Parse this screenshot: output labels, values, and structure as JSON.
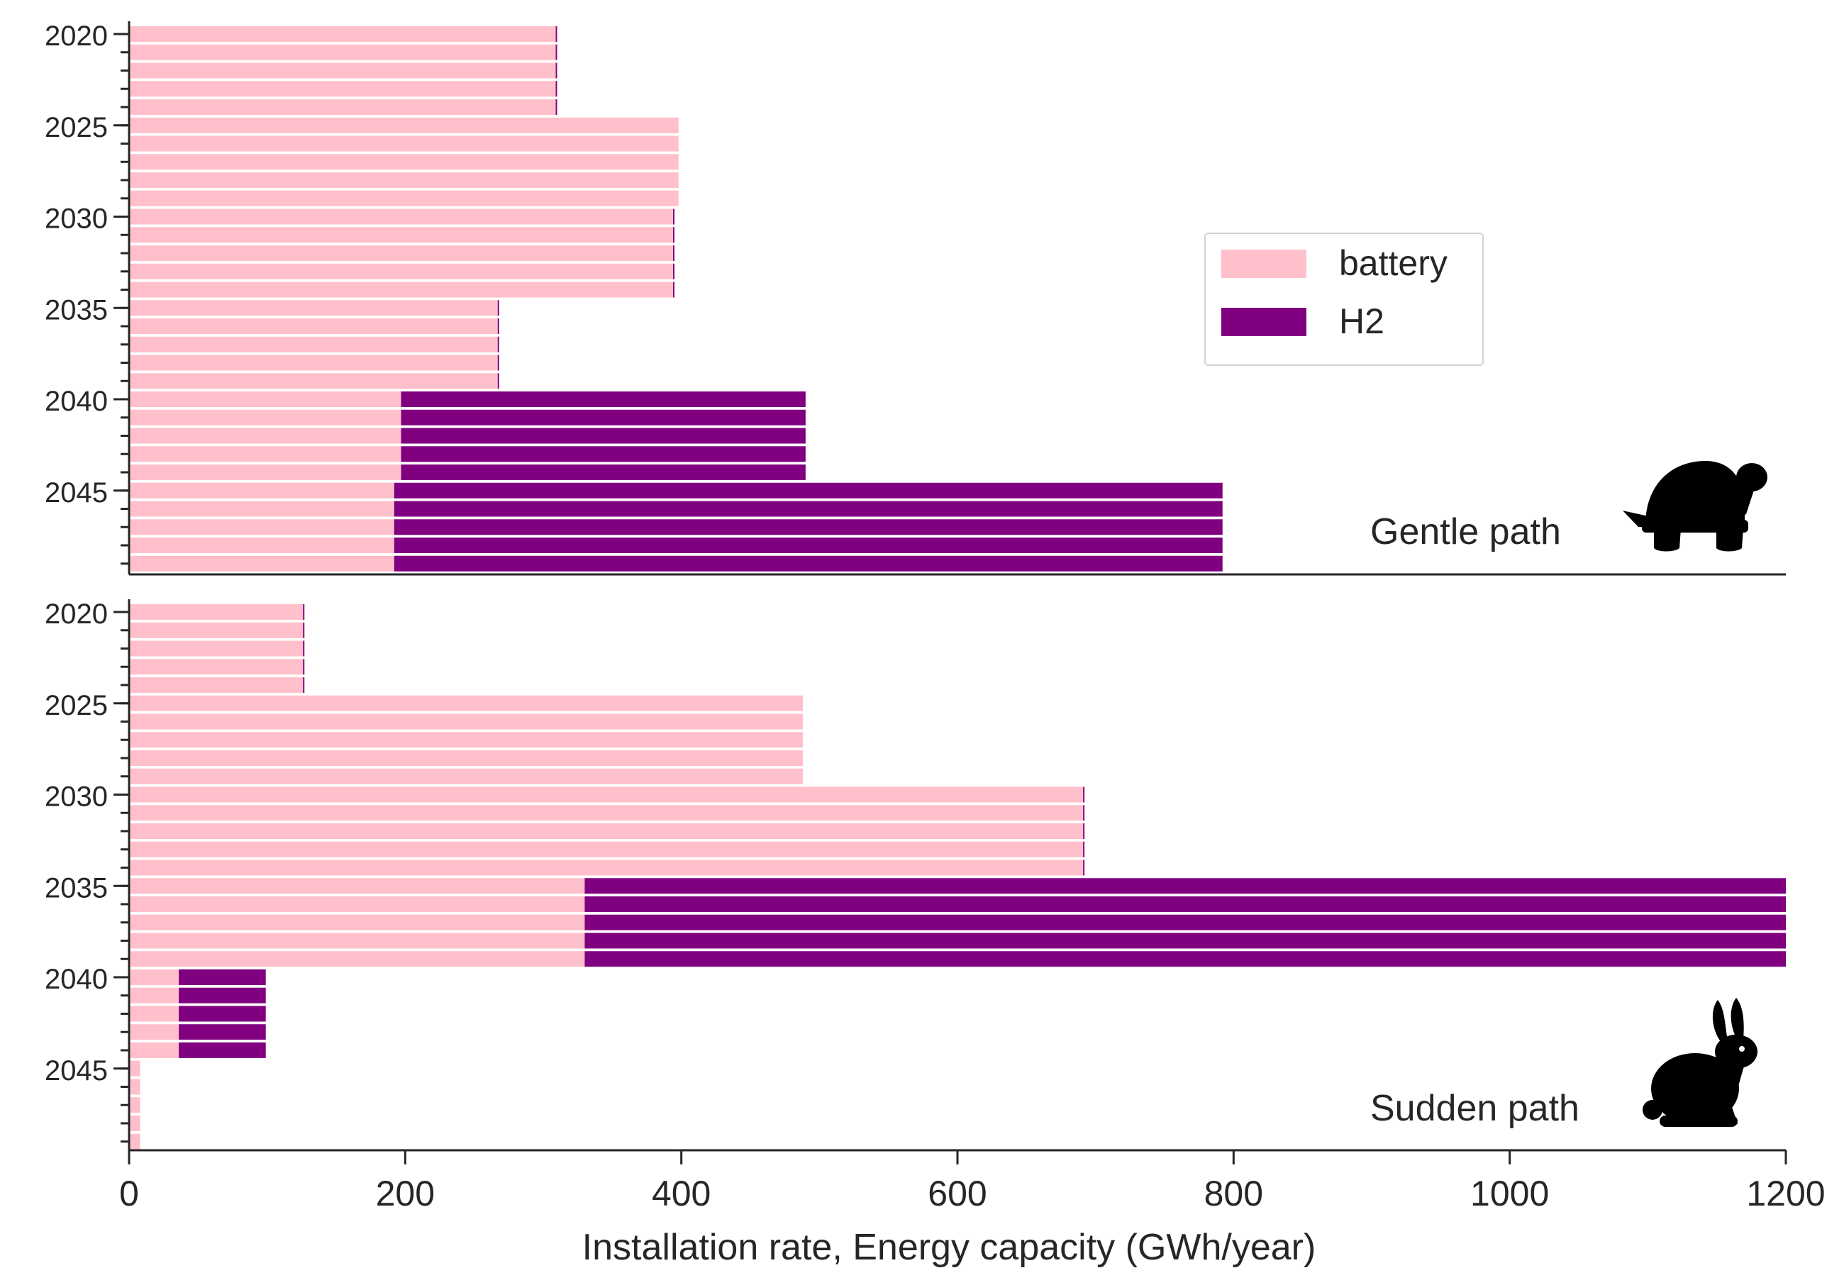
{
  "colors": {
    "battery": "#ffc0cb",
    "h2": "#800080",
    "axis": "#262626"
  },
  "legend": {
    "battery_label": "battery",
    "h2_label": "H2"
  },
  "xaxis": {
    "label": "Installation rate, Energy capacity (GWh/year)",
    "ticks": [
      "0",
      "200",
      "400",
      "600",
      "800",
      "1000",
      "1200"
    ]
  },
  "panels": [
    {
      "label": "Gentle path",
      "icon": "tortoise-icon"
    },
    {
      "label": "Sudden path",
      "icon": "rabbit-icon"
    }
  ],
  "chart_data": [
    {
      "type": "bar",
      "orientation": "horizontal",
      "stacked": true,
      "title": "Gentle path",
      "xlabel": "Installation rate, Energy capacity (GWh/year)",
      "xlim": [
        0,
        1200
      ],
      "ytick_labels": [
        "2020",
        "2025",
        "2030",
        "2035",
        "2040",
        "2045"
      ],
      "categories": [
        2020,
        2021,
        2022,
        2023,
        2024,
        2025,
        2026,
        2027,
        2028,
        2029,
        2030,
        2031,
        2032,
        2033,
        2034,
        2035,
        2036,
        2037,
        2038,
        2039,
        2040,
        2041,
        2042,
        2043,
        2044,
        2045,
        2046,
        2047,
        2048,
        2049
      ],
      "series": [
        {
          "name": "battery",
          "values": [
            309,
            309,
            309,
            309,
            309,
            398,
            398,
            398,
            398,
            398,
            394,
            394,
            394,
            394,
            394,
            267,
            267,
            267,
            267,
            267,
            197,
            197,
            197,
            197,
            197,
            192,
            192,
            192,
            192,
            192
          ]
        },
        {
          "name": "H2",
          "values": [
            1,
            1,
            1,
            1,
            1,
            0,
            0,
            0,
            0,
            0,
            1,
            1,
            1,
            1,
            1,
            1,
            1,
            1,
            1,
            1,
            293,
            293,
            293,
            293,
            293,
            600,
            600,
            600,
            600,
            600
          ]
        }
      ]
    },
    {
      "type": "bar",
      "orientation": "horizontal",
      "stacked": true,
      "title": "Sudden path",
      "xlabel": "Installation rate, Energy capacity (GWh/year)",
      "xlim": [
        0,
        1200
      ],
      "ytick_labels": [
        "2020",
        "2025",
        "2030",
        "2035",
        "2040",
        "2045"
      ],
      "categories": [
        2020,
        2021,
        2022,
        2023,
        2024,
        2025,
        2026,
        2027,
        2028,
        2029,
        2030,
        2031,
        2032,
        2033,
        2034,
        2035,
        2036,
        2037,
        2038,
        2039,
        2040,
        2041,
        2042,
        2043,
        2044,
        2045,
        2046,
        2047,
        2048,
        2049
      ],
      "series": [
        {
          "name": "battery",
          "values": [
            126,
            126,
            126,
            126,
            126,
            488,
            488,
            488,
            488,
            488,
            691,
            691,
            691,
            691,
            691,
            330,
            330,
            330,
            330,
            330,
            36,
            36,
            36,
            36,
            36,
            8,
            8,
            8,
            8,
            8
          ]
        },
        {
          "name": "H2",
          "values": [
            1,
            1,
            1,
            1,
            1,
            0,
            0,
            0,
            0,
            0,
            1,
            1,
            1,
            1,
            1,
            870,
            870,
            870,
            870,
            870,
            63,
            63,
            63,
            63,
            63,
            0,
            0,
            0,
            0,
            0
          ]
        }
      ]
    }
  ]
}
